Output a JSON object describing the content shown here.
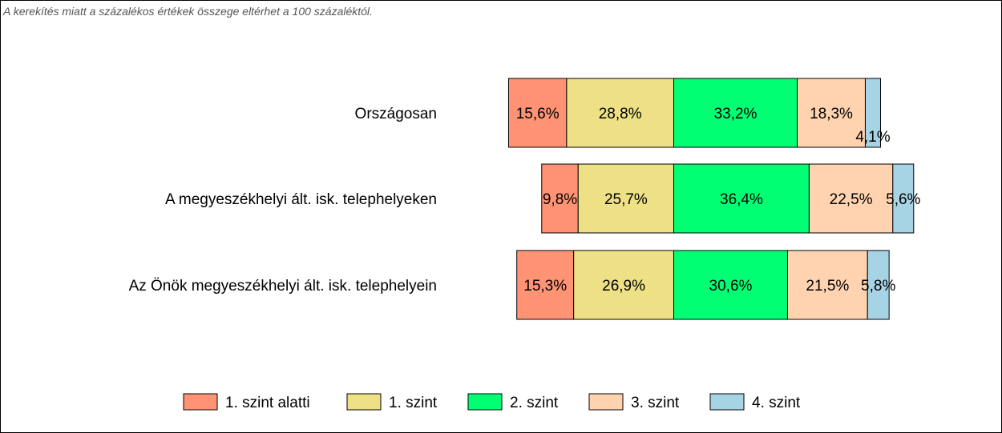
{
  "note": "A kerekítés miatt a  százalékos értékek összege eltérhet a 100 százaléktól.",
  "chart_data": {
    "type": "bar",
    "orientation": "horizontal",
    "stacked": true,
    "categories": [
      "Országosan",
      "A megyeszékhelyi ált. isk. telephelyeken",
      "Az Önök megyeszékhelyi ált. isk. telephelyein"
    ],
    "series": [
      {
        "name": "1. szint alatti",
        "color": "#FF9373",
        "values": [
          15.6,
          9.8,
          15.3
        ],
        "labels": [
          "15,6%",
          "9,8%",
          "15,3%"
        ]
      },
      {
        "name": "1. szint",
        "color": "#EEE085",
        "values": [
          28.8,
          25.7,
          26.9
        ],
        "labels": [
          "28,8%",
          "25,7%",
          "26,9%"
        ]
      },
      {
        "name": "2. szint",
        "color": "#00FF73",
        "values": [
          33.2,
          36.4,
          30.6
        ],
        "labels": [
          "33,2%",
          "36,4%",
          "30,6%"
        ]
      },
      {
        "name": "3. szint",
        "color": "#FFD3B0",
        "values": [
          18.3,
          22.5,
          21.5
        ],
        "labels": [
          "18,3%",
          "22,5%",
          "21,5%"
        ]
      },
      {
        "name": "4. szint",
        "color": "#A7D4E5",
        "values": [
          4.1,
          5.6,
          5.8
        ],
        "labels": [
          "4,1%",
          "5,6%",
          "5,8%"
        ]
      }
    ],
    "alignment": "left two levels to the left of the level 2 boundary",
    "legend_position": "bottom",
    "grid": false
  }
}
